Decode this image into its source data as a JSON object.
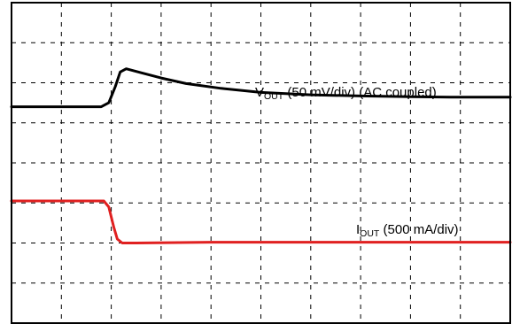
{
  "chart_data": {
    "type": "line",
    "title": "",
    "xlabel": "",
    "ylabel": "",
    "grid": true,
    "grid_divisions": {
      "x": 10,
      "y": 8
    },
    "xlim": [
      0,
      10
    ],
    "ylim": [
      0,
      8
    ],
    "series": [
      {
        "name": "V_OUT",
        "label": {
          "main": "V",
          "sub": "OUT",
          "rest": " (50 mV/div) (AC coupled)"
        },
        "color": "#000000",
        "points": [
          [
            0,
            5.4
          ],
          [
            1.8,
            5.4
          ],
          [
            1.95,
            5.5
          ],
          [
            2.08,
            5.9
          ],
          [
            2.18,
            6.27
          ],
          [
            2.3,
            6.35
          ],
          [
            2.6,
            6.25
          ],
          [
            3.0,
            6.12
          ],
          [
            3.5,
            5.98
          ],
          [
            4.2,
            5.86
          ],
          [
            5.0,
            5.76
          ],
          [
            6.0,
            5.7
          ],
          [
            7.0,
            5.67
          ],
          [
            8.0,
            5.65
          ],
          [
            9.0,
            5.64
          ],
          [
            10.0,
            5.64
          ]
        ]
      },
      {
        "name": "I_OUT",
        "label": {
          "main": "I",
          "sub": "OUT",
          "rest": " (500 mA/div)"
        },
        "color": "#e02020",
        "points": [
          [
            0,
            3.05
          ],
          [
            1.85,
            3.05
          ],
          [
            1.95,
            2.9
          ],
          [
            2.05,
            2.4
          ],
          [
            2.12,
            2.1
          ],
          [
            2.22,
            2.0
          ],
          [
            2.5,
            2.0
          ],
          [
            4.0,
            2.02
          ],
          [
            6.0,
            2.02
          ],
          [
            8.0,
            2.02
          ],
          [
            10.0,
            2.02
          ]
        ]
      }
    ]
  }
}
